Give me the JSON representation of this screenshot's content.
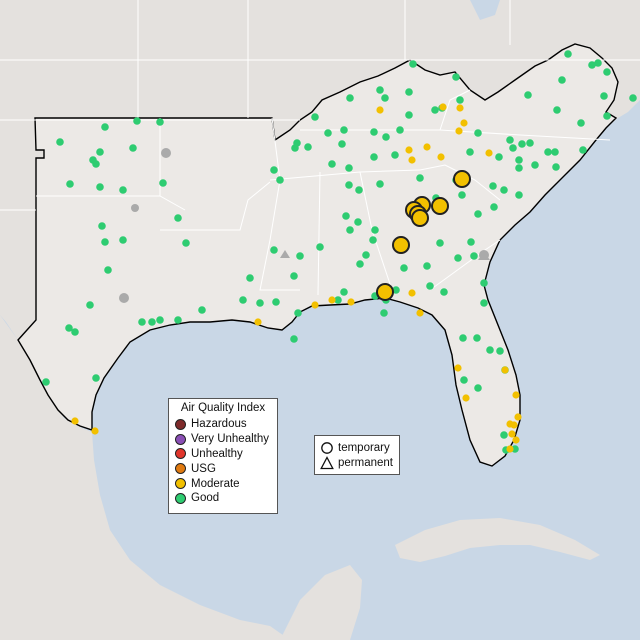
{
  "map": {
    "legend": {
      "title": "Air Quality Index",
      "items": [
        {
          "label": "Hazardous",
          "color": "#7e2a2a"
        },
        {
          "label": "Very Unhealthy",
          "color": "#8a4fb5"
        },
        {
          "label": "Unhealthy",
          "color": "#e0352b"
        },
        {
          "label": "USG",
          "color": "#e07a10"
        },
        {
          "label": "Moderate",
          "color": "#f2c000"
        },
        {
          "label": "Good",
          "color": "#2ecc71"
        }
      ]
    },
    "shape_legend": {
      "items": [
        {
          "label": "temporary",
          "icon": "circle-icon"
        },
        {
          "label": "permanent",
          "icon": "triangle-icon"
        }
      ]
    },
    "colors": {
      "ocean": "#c9d7e6",
      "land_focus": "#ece9e6",
      "land_other": "#e4e1de",
      "border": "#000000",
      "minor_border": "#ffffff",
      "missing": "#aaaaaa"
    }
  }
}
